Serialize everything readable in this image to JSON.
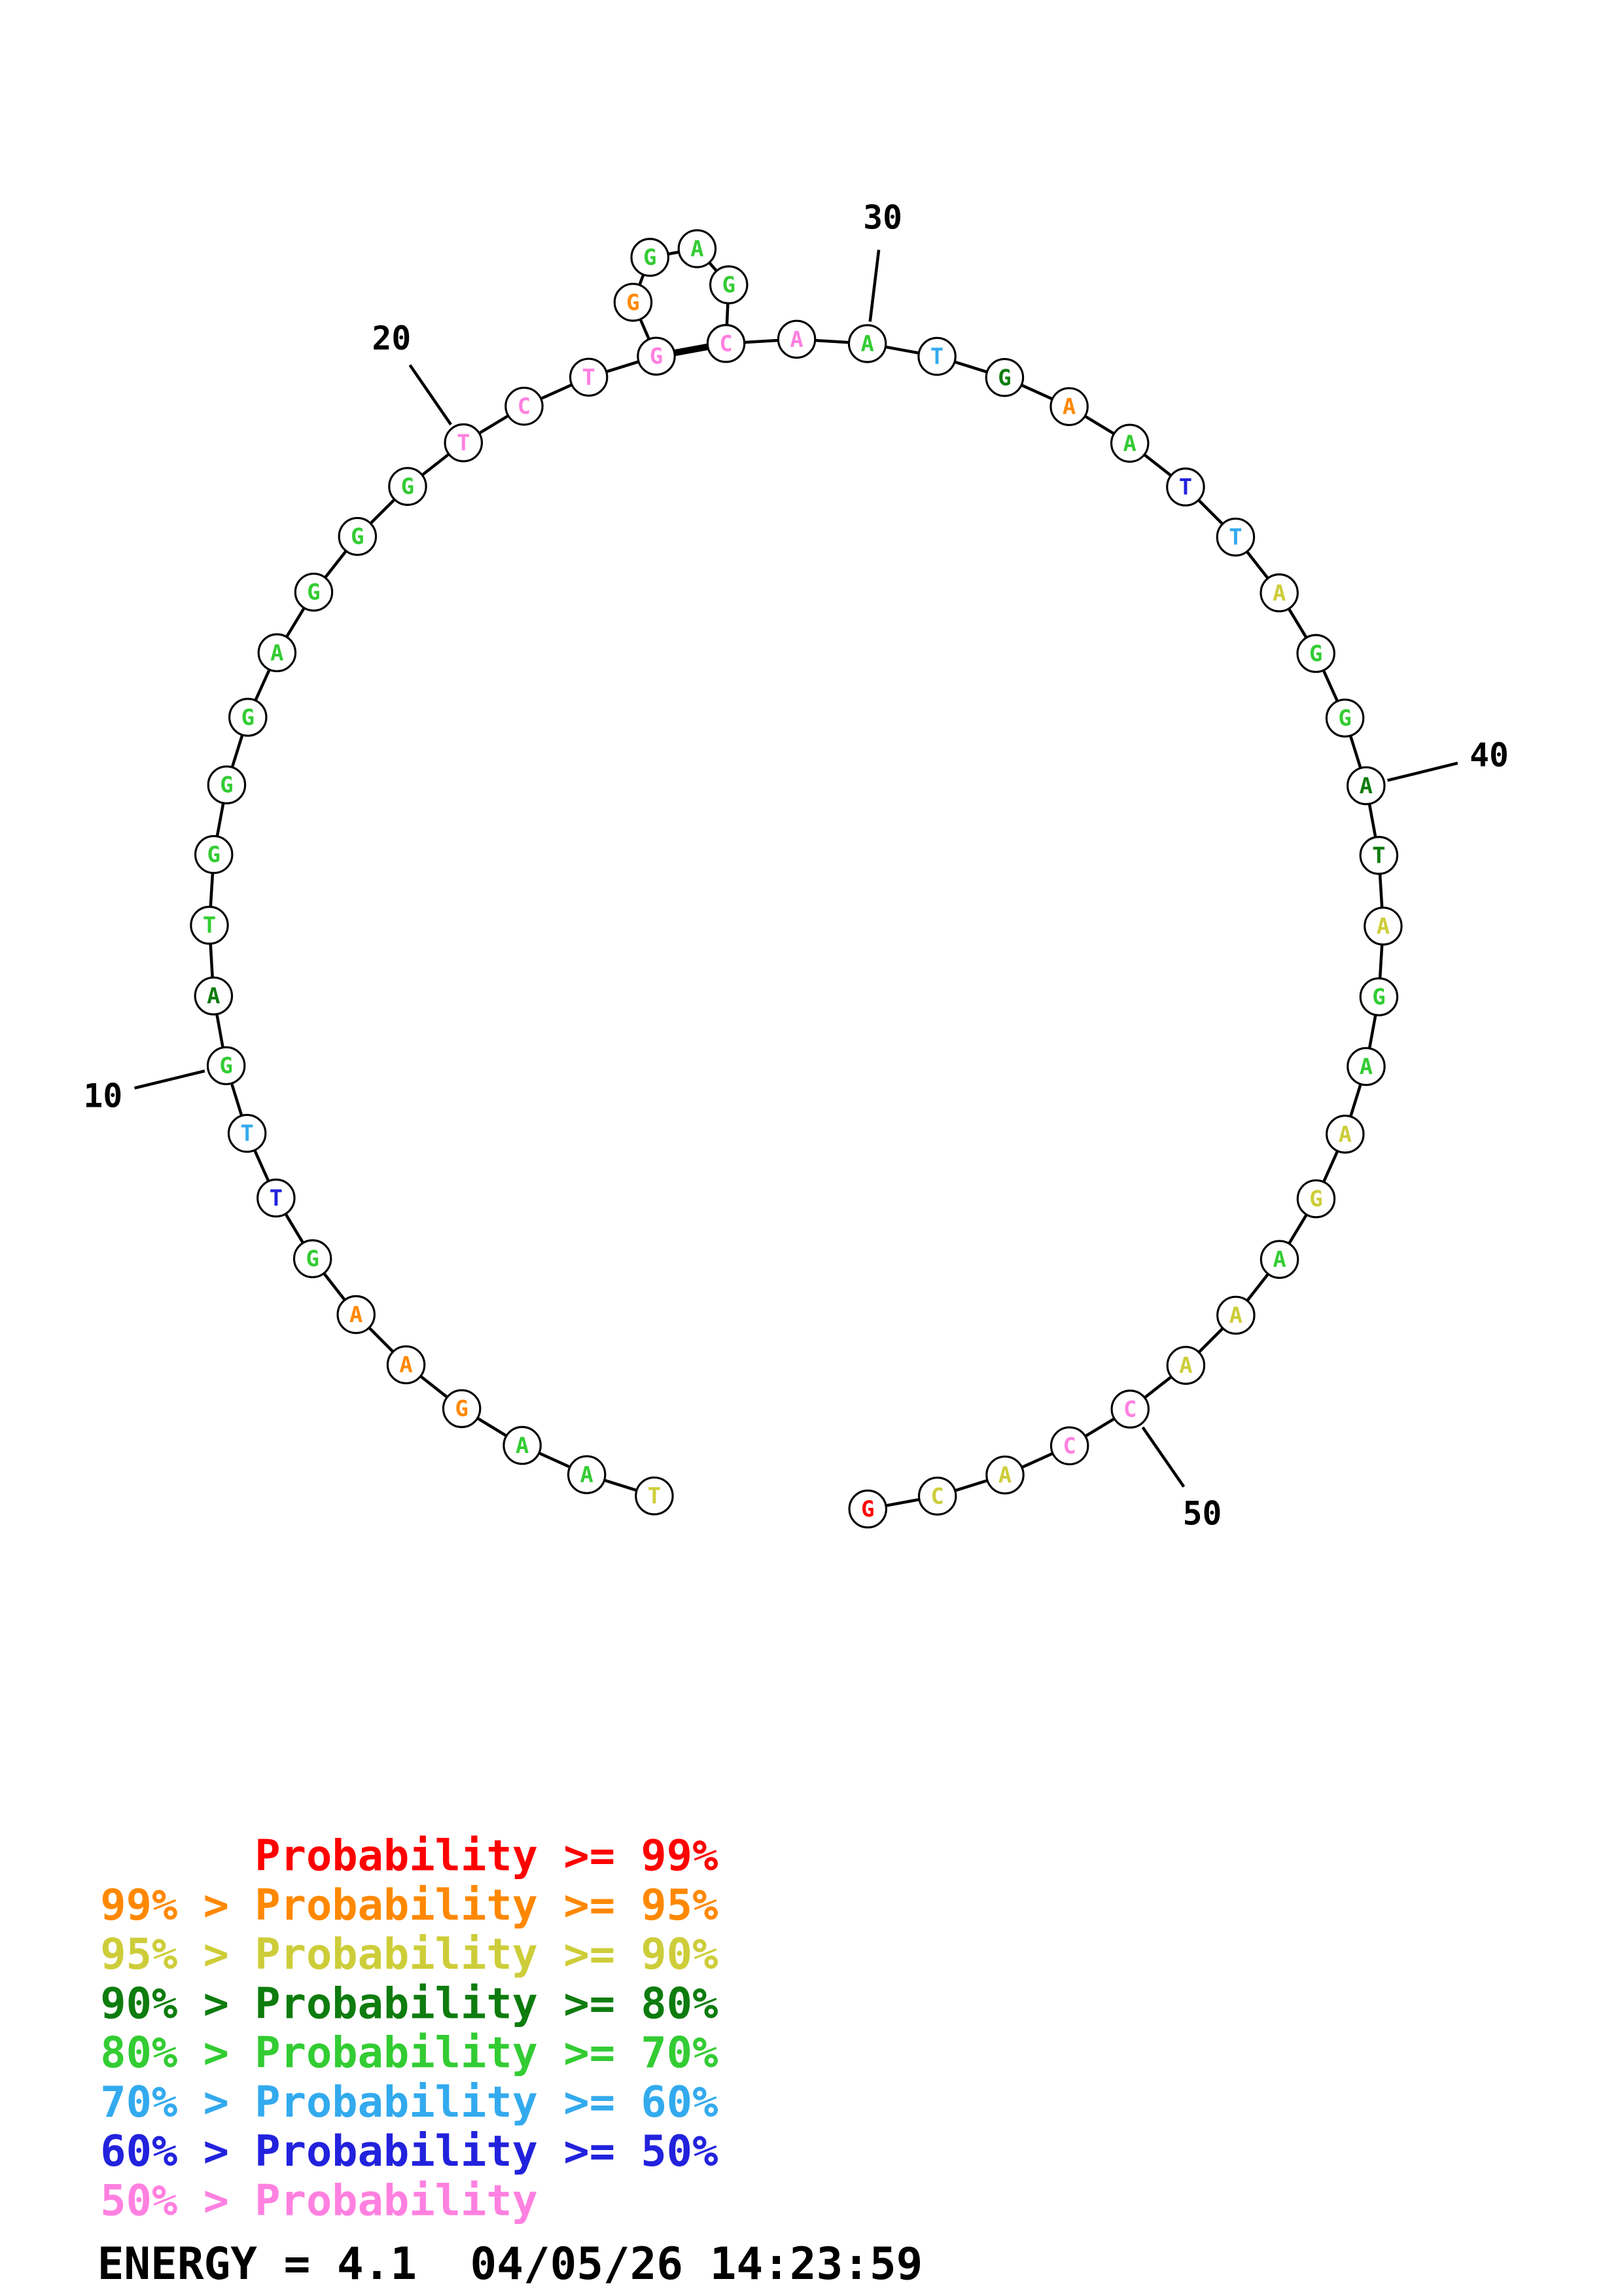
{
  "page": {
    "background": "#ffffff"
  },
  "chart_data": {
    "type": "rna_structure_circle_plot",
    "description": "Single-stranded nucleic acid structure plot; bases on an open circle with one hairpin loop closed by pair 23-28; base letters colored by pairing probability class",
    "sequence": "TAAGAAGTTGATGGGAGGGTCTGGGAGCAATGAATTAGGATAGAAGAAACCACG",
    "nucleotides": [
      {
        "pos": 1,
        "base": "T",
        "prob": "p90"
      },
      {
        "pos": 2,
        "base": "A",
        "prob": "p70"
      },
      {
        "pos": 3,
        "base": "A",
        "prob": "p70"
      },
      {
        "pos": 4,
        "base": "G",
        "prob": "p95"
      },
      {
        "pos": 5,
        "base": "A",
        "prob": "p95"
      },
      {
        "pos": 6,
        "base": "A",
        "prob": "p95"
      },
      {
        "pos": 7,
        "base": "G",
        "prob": "p70"
      },
      {
        "pos": 8,
        "base": "T",
        "prob": "p50"
      },
      {
        "pos": 9,
        "base": "T",
        "prob": "p60"
      },
      {
        "pos": 10,
        "base": "G",
        "prob": "p70"
      },
      {
        "pos": 11,
        "base": "A",
        "prob": "p80"
      },
      {
        "pos": 12,
        "base": "T",
        "prob": "p70"
      },
      {
        "pos": 13,
        "base": "G",
        "prob": "p70"
      },
      {
        "pos": 14,
        "base": "G",
        "prob": "p70"
      },
      {
        "pos": 15,
        "base": "G",
        "prob": "p70"
      },
      {
        "pos": 16,
        "base": "A",
        "prob": "p70"
      },
      {
        "pos": 17,
        "base": "G",
        "prob": "p70"
      },
      {
        "pos": 18,
        "base": "G",
        "prob": "p70"
      },
      {
        "pos": 19,
        "base": "G",
        "prob": "p70"
      },
      {
        "pos": 20,
        "base": "T",
        "prob": "lt50"
      },
      {
        "pos": 21,
        "base": "C",
        "prob": "lt50"
      },
      {
        "pos": 22,
        "base": "T",
        "prob": "lt50"
      },
      {
        "pos": 23,
        "base": "G",
        "prob": "lt50"
      },
      {
        "pos": 24,
        "base": "G",
        "prob": "p95"
      },
      {
        "pos": 25,
        "base": "G",
        "prob": "p70"
      },
      {
        "pos": 26,
        "base": "A",
        "prob": "p70"
      },
      {
        "pos": 27,
        "base": "G",
        "prob": "p70"
      },
      {
        "pos": 28,
        "base": "C",
        "prob": "lt50"
      },
      {
        "pos": 29,
        "base": "A",
        "prob": "lt50"
      },
      {
        "pos": 30,
        "base": "A",
        "prob": "p70"
      },
      {
        "pos": 31,
        "base": "T",
        "prob": "p60"
      },
      {
        "pos": 32,
        "base": "G",
        "prob": "p80"
      },
      {
        "pos": 33,
        "base": "A",
        "prob": "p95"
      },
      {
        "pos": 34,
        "base": "A",
        "prob": "p70"
      },
      {
        "pos": 35,
        "base": "T",
        "prob": "p50"
      },
      {
        "pos": 36,
        "base": "T",
        "prob": "p60"
      },
      {
        "pos": 37,
        "base": "A",
        "prob": "p90"
      },
      {
        "pos": 38,
        "base": "G",
        "prob": "p70"
      },
      {
        "pos": 39,
        "base": "G",
        "prob": "p70"
      },
      {
        "pos": 40,
        "base": "A",
        "prob": "p80"
      },
      {
        "pos": 41,
        "base": "T",
        "prob": "p80"
      },
      {
        "pos": 42,
        "base": "A",
        "prob": "p90"
      },
      {
        "pos": 43,
        "base": "G",
        "prob": "p70"
      },
      {
        "pos": 44,
        "base": "A",
        "prob": "p70"
      },
      {
        "pos": 45,
        "base": "A",
        "prob": "p90"
      },
      {
        "pos": 46,
        "base": "G",
        "prob": "p90"
      },
      {
        "pos": 47,
        "base": "A",
        "prob": "p70"
      },
      {
        "pos": 48,
        "base": "A",
        "prob": "p90"
      },
      {
        "pos": 49,
        "base": "A",
        "prob": "p90"
      },
      {
        "pos": 50,
        "base": "C",
        "prob": "lt50"
      },
      {
        "pos": 51,
        "base": "C",
        "prob": "lt50"
      },
      {
        "pos": 52,
        "base": "A",
        "prob": "p90"
      },
      {
        "pos": 53,
        "base": "C",
        "prob": "p90"
      },
      {
        "pos": 54,
        "base": "G",
        "prob": "p99"
      }
    ],
    "pairs": [
      [
        23,
        28
      ]
    ],
    "hairpin_loop_positions": [
      24,
      25,
      26,
      27
    ],
    "position_labels": [
      10,
      20,
      30,
      40,
      50
    ],
    "probability_colors": {
      "p99": "#ff0000",
      "p95": "#ff8800",
      "p90": "#cdcd3a",
      "p80": "#0e7c0e",
      "p70": "#33cc33",
      "p60": "#33aaee",
      "p50": "#2222dd",
      "lt50": "#ff80e0"
    },
    "outline_color": "#000000",
    "legend": [
      {
        "text": "Probability >= 99%",
        "color_key": "p99",
        "indent_chars": 6
      },
      {
        "text": "99% > Probability >= 95%",
        "color_key": "p95",
        "indent_chars": 0
      },
      {
        "text": "95% > Probability >= 90%",
        "color_key": "p90",
        "indent_chars": 0
      },
      {
        "text": "90% > Probability >= 80%",
        "color_key": "p80",
        "indent_chars": 0
      },
      {
        "text": "80% > Probability >= 70%",
        "color_key": "p70",
        "indent_chars": 0
      },
      {
        "text": "70% > Probability >= 60%",
        "color_key": "p60",
        "indent_chars": 0
      },
      {
        "text": "60% > Probability >= 50%",
        "color_key": "p50",
        "indent_chars": 0
      },
      {
        "text": "50% > Probability",
        "color_key": "lt50",
        "indent_chars": 0
      }
    ],
    "footer": {
      "energy_label": "ENERGY = 4.1",
      "timestamp": "04/05/26 14:23:59"
    }
  }
}
